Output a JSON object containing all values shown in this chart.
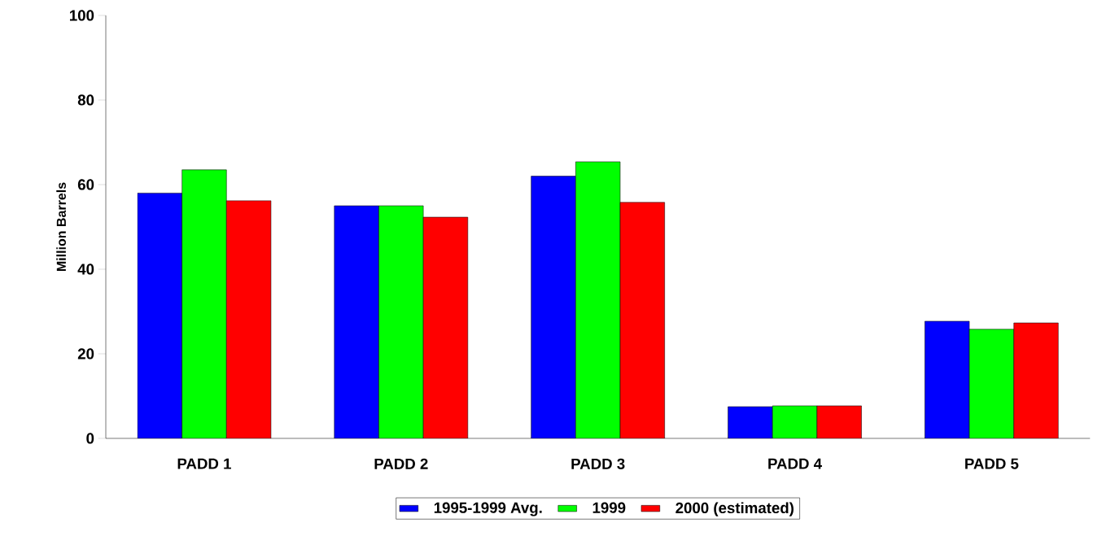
{
  "chart_data": {
    "type": "bar",
    "ylabel": "Million Barrels",
    "categories": [
      "PADD 1",
      "PADD 2",
      "PADD 3",
      "PADD 4",
      "PADD 5"
    ],
    "series": [
      {
        "name": "1995-1999 Avg.",
        "color": "#0000ff",
        "values": [
          58,
          55,
          62,
          7.5,
          27.7
        ]
      },
      {
        "name": "1999",
        "color": "#00ff00",
        "values": [
          63.5,
          55,
          65.4,
          7.7,
          25.8
        ]
      },
      {
        "name": "2000 (estimated)",
        "color": "#ff0000",
        "values": [
          56.2,
          52.3,
          55.8,
          7.7,
          27.3
        ]
      }
    ],
    "ylim": [
      0,
      100
    ],
    "yticks": [
      0,
      20,
      40,
      60,
      80,
      100
    ],
    "grid": false,
    "legend": "bottom"
  }
}
